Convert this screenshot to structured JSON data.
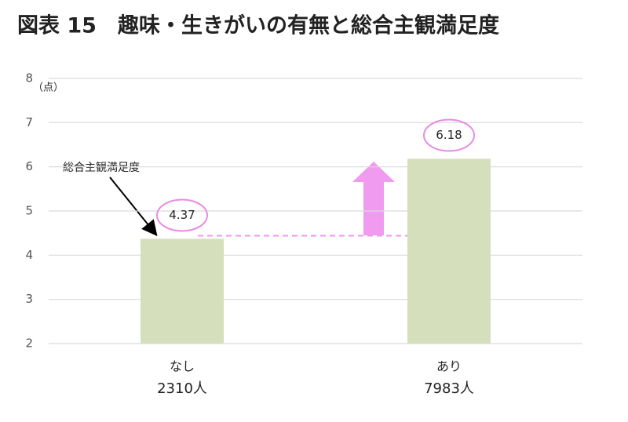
{
  "chart_data": {
    "type": "bar",
    "title": "図表 15　趣味・生きがいの有無と総合主観満足度",
    "y_unit": "（点）",
    "annotation": "総合主観満足度",
    "categories": [
      "なし",
      "あり"
    ],
    "category_counts": [
      "2310人",
      "7983人"
    ],
    "values": [
      4.37,
      6.18
    ],
    "color": "#d5dfbc",
    "ylim": [
      2,
      8
    ],
    "yticks": [
      2,
      3,
      4,
      5,
      6,
      7,
      8
    ],
    "grid": true
  }
}
